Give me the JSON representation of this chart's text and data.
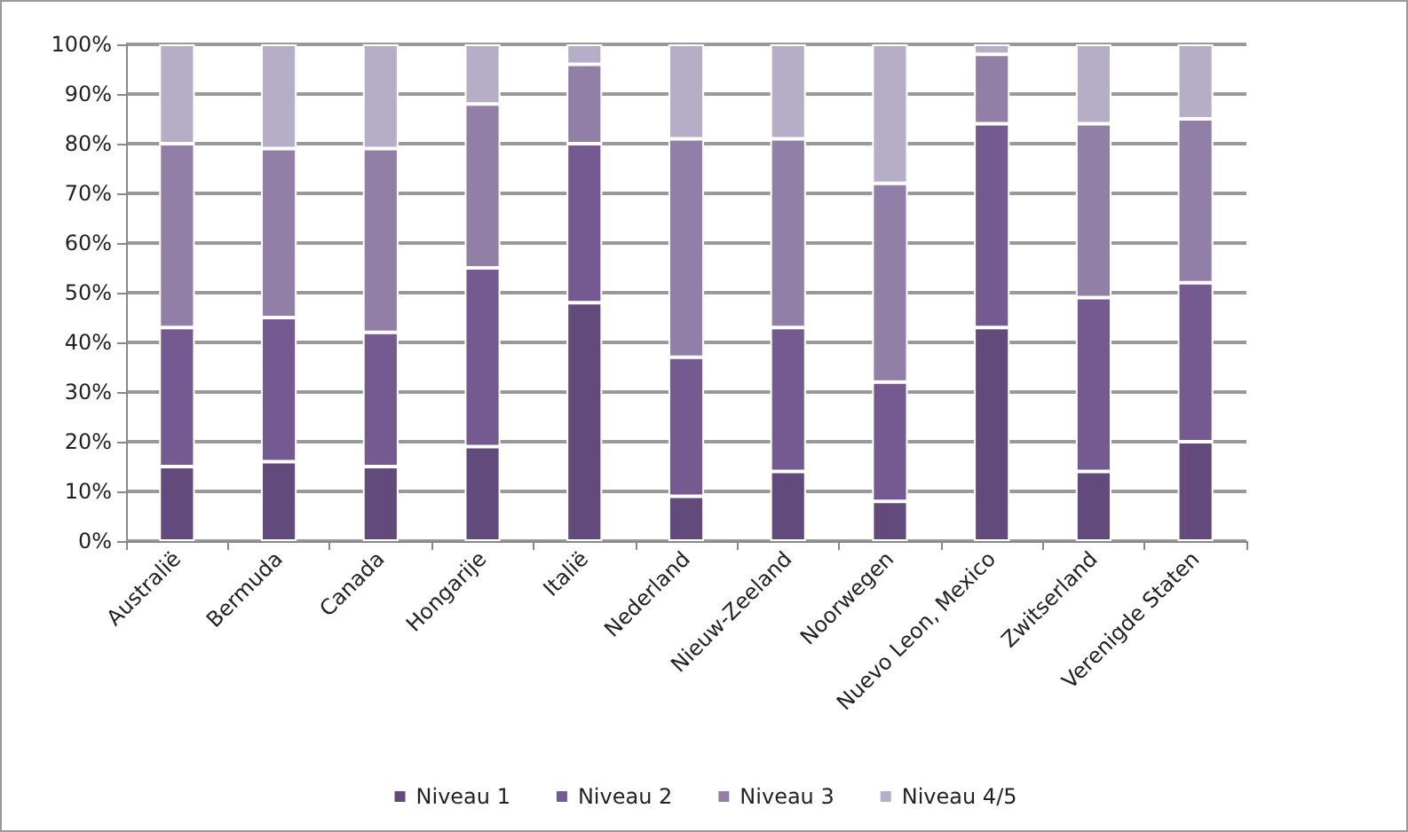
{
  "chart_data": {
    "type": "bar",
    "stacked": true,
    "categories": [
      "Australië",
      "Bermuda",
      "Canada",
      "Hongarije",
      "Italië",
      "Nederland",
      "Nieuw-Zeeland",
      "Noorwegen",
      "Nuevo Leon, Mexico",
      "Zwitserland",
      "Verenigde Staten"
    ],
    "series": [
      {
        "name": "Niveau 1",
        "color": "#624a7c",
        "values": [
          15,
          16,
          15,
          19,
          48,
          9,
          14,
          8,
          43,
          14,
          20
        ]
      },
      {
        "name": "Niveau 2",
        "color": "#745a90",
        "values": [
          28,
          29,
          27,
          36,
          32,
          28,
          29,
          24,
          41,
          35,
          32
        ]
      },
      {
        "name": "Niveau 3",
        "color": "#917fa8",
        "values": [
          37,
          34,
          37,
          33,
          16,
          44,
          38,
          40,
          14,
          35,
          33
        ]
      },
      {
        "name": "Niveau 4/5",
        "color": "#b6aec6",
        "values": [
          20,
          21,
          21,
          12,
          4,
          19,
          19,
          28,
          2,
          16,
          15
        ]
      }
    ],
    "ylim": [
      0,
      100
    ],
    "yticks": [
      {
        "value": 0,
        "label": "0%"
      },
      {
        "value": 10,
        "label": "10%"
      },
      {
        "value": 20,
        "label": "20%"
      },
      {
        "value": 30,
        "label": "30%"
      },
      {
        "value": 40,
        "label": "40%"
      },
      {
        "value": 50,
        "label": "50%"
      },
      {
        "value": 60,
        "label": "60%"
      },
      {
        "value": 70,
        "label": "70%"
      },
      {
        "value": 80,
        "label": "80%"
      },
      {
        "value": 90,
        "label": "90%"
      },
      {
        "value": 100,
        "label": "100%"
      }
    ],
    "grid": "y",
    "legend": "bottom"
  }
}
